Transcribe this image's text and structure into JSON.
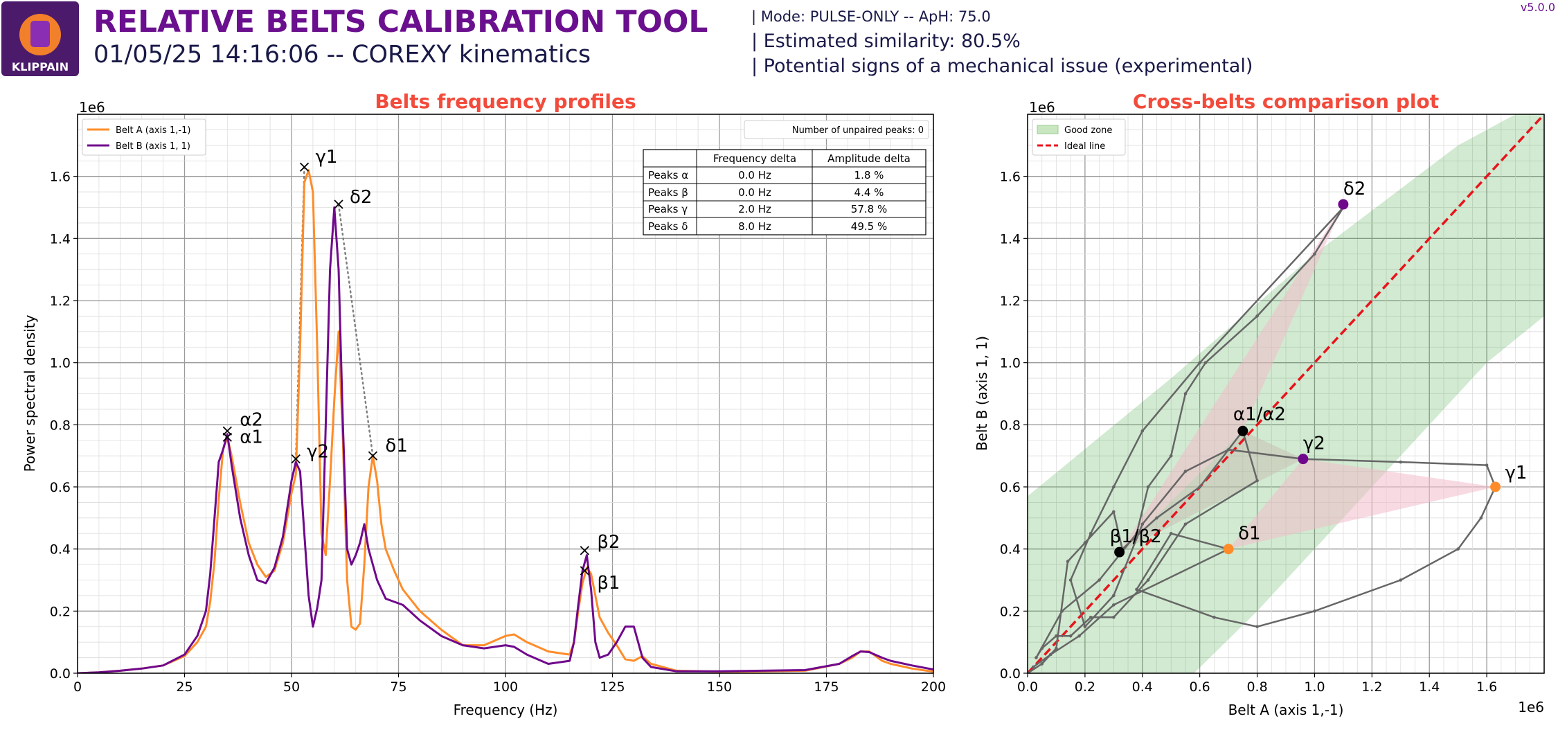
{
  "header": {
    "logo_text": "KLIPPAIN",
    "title": "RELATIVE BELTS CALIBRATION TOOL",
    "subtitle": "01/05/25 14:16:06 -- COREXY kinematics",
    "mode_line": "| Mode: PULSE-ONLY -- ApH: 75.0",
    "similarity_line": "| Estimated similarity: 80.5%",
    "issue_line": "| Potential signs of a mechanical issue (experimental)",
    "version": "v5.0.0",
    "colors": {
      "title": "#6a0f8e",
      "text": "#191948",
      "accent": "#f24b3c"
    }
  },
  "chart_data": [
    {
      "type": "line",
      "title": "Belts frequency profiles",
      "xlabel": "Frequency (Hz)",
      "ylabel": "Power spectral density",
      "y_scale_label": "1e6",
      "xlim": [
        0,
        200
      ],
      "ylim": [
        0,
        1.8
      ],
      "xticks": [
        "0",
        "25",
        "50",
        "75",
        "100",
        "125",
        "150",
        "175",
        "200"
      ],
      "yticks": [
        "0.0",
        "0.2",
        "0.4",
        "0.6",
        "0.8",
        "1.0",
        "1.2",
        "1.4",
        "1.6"
      ],
      "grid": true,
      "legend_position": "top-left",
      "series": [
        {
          "name": "Belt A (axis 1,-1)",
          "color": "#ff8c29",
          "x": [
            0,
            5,
            10,
            15,
            20,
            25,
            28,
            30,
            31,
            32,
            33,
            34,
            35,
            36,
            38,
            40,
            42,
            44,
            46,
            48,
            50,
            51,
            52,
            53,
            54,
            55,
            56,
            57,
            58,
            59,
            60,
            61,
            62,
            63,
            64,
            65,
            66,
            67,
            68,
            69,
            70,
            71,
            72,
            74,
            76,
            80,
            85,
            90,
            95,
            100,
            102,
            105,
            110,
            115,
            116,
            117,
            118,
            119,
            120,
            121,
            122,
            124,
            126,
            128,
            130,
            132,
            134,
            140,
            150,
            160,
            170,
            178,
            181,
            183,
            185,
            188,
            190,
            195,
            200
          ],
          "y": [
            0,
            0.003,
            0.008,
            0.015,
            0.025,
            0.055,
            0.1,
            0.15,
            0.23,
            0.36,
            0.56,
            0.72,
            0.76,
            0.7,
            0.55,
            0.42,
            0.35,
            0.31,
            0.33,
            0.42,
            0.58,
            0.64,
            1.05,
            1.58,
            1.62,
            1.55,
            1.05,
            0.45,
            0.38,
            0.62,
            0.88,
            1.1,
            0.75,
            0.3,
            0.15,
            0.14,
            0.16,
            0.35,
            0.6,
            0.7,
            0.62,
            0.48,
            0.4,
            0.33,
            0.27,
            0.2,
            0.14,
            0.09,
            0.09,
            0.12,
            0.125,
            0.1,
            0.07,
            0.06,
            0.1,
            0.2,
            0.29,
            0.34,
            0.32,
            0.25,
            0.18,
            0.13,
            0.09,
            0.045,
            0.04,
            0.055,
            0.03,
            0.008,
            0.005,
            0.006,
            0.008,
            0.03,
            0.05,
            0.07,
            0.07,
            0.04,
            0.03,
            0.015,
            0.005
          ]
        },
        {
          "name": "Belt B (axis 1, 1)",
          "color": "#70088c",
          "x": [
            0,
            5,
            10,
            15,
            20,
            25,
            28,
            30,
            31,
            32,
            33,
            34,
            35,
            36,
            38,
            40,
            42,
            44,
            46,
            48,
            50,
            51,
            52,
            53,
            54,
            55,
            56,
            57,
            58,
            59,
            60,
            61,
            62,
            63,
            64,
            65,
            66,
            67,
            68,
            69,
            70,
            71,
            72,
            74,
            76,
            80,
            85,
            90,
            95,
            100,
            102,
            105,
            110,
            115,
            116,
            117,
            118,
            119,
            120,
            121,
            122,
            124,
            126,
            128,
            130,
            132,
            134,
            140,
            150,
            160,
            170,
            178,
            181,
            183,
            185,
            188,
            190,
            195,
            200
          ],
          "y": [
            0,
            0.003,
            0.008,
            0.015,
            0.025,
            0.06,
            0.12,
            0.2,
            0.32,
            0.5,
            0.68,
            0.72,
            0.77,
            0.67,
            0.5,
            0.38,
            0.3,
            0.29,
            0.34,
            0.44,
            0.62,
            0.68,
            0.65,
            0.45,
            0.25,
            0.15,
            0.21,
            0.3,
            0.8,
            1.3,
            1.5,
            1.3,
            0.8,
            0.4,
            0.35,
            0.38,
            0.42,
            0.48,
            0.4,
            0.35,
            0.3,
            0.27,
            0.24,
            0.23,
            0.22,
            0.17,
            0.12,
            0.09,
            0.08,
            0.09,
            0.085,
            0.06,
            0.03,
            0.04,
            0.1,
            0.22,
            0.33,
            0.38,
            0.27,
            0.1,
            0.05,
            0.06,
            0.1,
            0.15,
            0.15,
            0.05,
            0.02,
            0.006,
            0.006,
            0.008,
            0.01,
            0.03,
            0.055,
            0.07,
            0.068,
            0.05,
            0.04,
            0.025,
            0.012
          ]
        }
      ],
      "peaks": [
        {
          "label": "α1",
          "belt": "A",
          "x": 35,
          "y": 0.76
        },
        {
          "label": "α2",
          "belt": "B",
          "x": 35,
          "y": 0.78
        },
        {
          "label": "β1",
          "belt": "A",
          "x": 118.5,
          "y": 0.33
        },
        {
          "label": "β2",
          "belt": "B",
          "x": 118.5,
          "y": 0.395
        },
        {
          "label": "γ1",
          "belt": "A",
          "x": 53,
          "y": 1.63
        },
        {
          "label": "γ2",
          "belt": "B",
          "x": 51,
          "y": 0.69
        },
        {
          "label": "δ1",
          "belt": "A",
          "x": 69,
          "y": 0.7
        },
        {
          "label": "δ2",
          "belt": "B",
          "x": 61,
          "y": 1.51
        }
      ],
      "unpaired_peaks_label": "Number of unpaired peaks: 0",
      "table": {
        "headers": [
          "",
          "Frequency delta",
          "Amplitude delta"
        ],
        "rows": [
          [
            "Peaks α",
            "0.0 Hz",
            "1.8 %"
          ],
          [
            "Peaks β",
            "0.0 Hz",
            "4.4 %"
          ],
          [
            "Peaks γ",
            "2.0 Hz",
            "57.8 %"
          ],
          [
            "Peaks δ",
            "8.0 Hz",
            "49.5 %"
          ]
        ]
      }
    },
    {
      "type": "scatter",
      "title": "Cross-belts comparison plot",
      "xlabel": "Belt A (axis 1,-1)",
      "ylabel": "Belt B (axis 1, 1)",
      "x_scale_label": "1e6",
      "y_scale_label": "1e6",
      "xlim": [
        0,
        1.8
      ],
      "ylim": [
        0,
        1.8
      ],
      "xticks": [
        "0.0",
        "0.2",
        "0.4",
        "0.6",
        "0.8",
        "1.0",
        "1.2",
        "1.4",
        "1.6"
      ],
      "yticks": [
        "0.0",
        "0.2",
        "0.4",
        "0.6",
        "0.8",
        "1.0",
        "1.2",
        "1.4",
        "1.6"
      ],
      "grid": true,
      "legend_position": "top-left",
      "legend": [
        {
          "name": "Good zone",
          "color": "#2ca02c"
        },
        {
          "name": "Ideal line",
          "color": "#e8141c"
        }
      ],
      "good_zone_upper": [
        [
          0,
          0.57
        ],
        [
          0.5,
          0.95
        ],
        [
          1.0,
          1.35
        ],
        [
          1.5,
          1.7
        ],
        [
          1.8,
          1.85
        ]
      ],
      "good_zone_lower": [
        [
          0,
          0
        ],
        [
          0.58,
          0
        ],
        [
          0.8,
          0.2
        ],
        [
          1.2,
          0.6
        ],
        [
          1.6,
          1.0
        ],
        [
          1.8,
          1.15
        ]
      ],
      "trace": [
        [
          0,
          0
        ],
        [
          0.05,
          0.03
        ],
        [
          0.1,
          0.08
        ],
        [
          0.14,
          0.36
        ],
        [
          0.2,
          0.42
        ],
        [
          0.3,
          0.52
        ],
        [
          0.33,
          0.4
        ],
        [
          0.45,
          0.5
        ],
        [
          0.6,
          0.6
        ],
        [
          0.75,
          0.78
        ],
        [
          0.8,
          0.62
        ],
        [
          0.55,
          0.48
        ],
        [
          0.42,
          0.3
        ],
        [
          0.3,
          0.18
        ],
        [
          0.22,
          0.18
        ],
        [
          0.15,
          0.12
        ],
        [
          0.1,
          0.12
        ],
        [
          0.05,
          0.08
        ],
        [
          0.03,
          0.05
        ],
        [
          0.12,
          0.2
        ],
        [
          0.25,
          0.3
        ],
        [
          0.38,
          0.45
        ],
        [
          0.42,
          0.6
        ],
        [
          0.5,
          0.7
        ],
        [
          0.55,
          0.9
        ],
        [
          0.62,
          1.0
        ],
        [
          0.8,
          1.15
        ],
        [
          1.0,
          1.35
        ],
        [
          1.1,
          1.5
        ],
        [
          0.6,
          1.0
        ],
        [
          0.4,
          0.78
        ],
        [
          0.3,
          0.6
        ],
        [
          0.22,
          0.45
        ],
        [
          0.15,
          0.3
        ],
        [
          0.2,
          0.15
        ],
        [
          0.3,
          0.25
        ],
        [
          0.4,
          0.48
        ],
        [
          0.55,
          0.65
        ],
        [
          0.7,
          0.72
        ],
        [
          0.96,
          0.69
        ],
        [
          1.3,
          0.68
        ],
        [
          1.6,
          0.67
        ],
        [
          1.63,
          0.6
        ],
        [
          1.58,
          0.5
        ],
        [
          1.5,
          0.4
        ],
        [
          1.3,
          0.3
        ],
        [
          1.0,
          0.2
        ],
        [
          0.8,
          0.15
        ],
        [
          0.65,
          0.18
        ],
        [
          0.38,
          0.27
        ],
        [
          0.5,
          0.45
        ],
        [
          0.7,
          0.4
        ],
        [
          0.3,
          0.22
        ],
        [
          0.18,
          0.12
        ],
        [
          0.08,
          0.06
        ],
        [
          0.02,
          0.02
        ]
      ],
      "shaded_triangles": [
        {
          "color": "#f2bccb",
          "points": [
            [
              0.32,
              0.39
            ],
            [
              1.1,
              1.51
            ],
            [
              0.75,
              0.78
            ]
          ]
        },
        {
          "color": "#f2bccb",
          "points": [
            [
              0.96,
              0.69
            ],
            [
              1.63,
              0.6
            ],
            [
              0.7,
              0.4
            ]
          ]
        },
        {
          "color": "#c8bfb4",
          "points": [
            [
              0.32,
              0.39
            ],
            [
              0.75,
              0.78
            ],
            [
              0.96,
              0.69
            ]
          ]
        }
      ],
      "points": [
        {
          "label": "α1/α2",
          "x": 0.75,
          "y": 0.78,
          "color": "#000000"
        },
        {
          "label": "β1/β2",
          "x": 0.32,
          "y": 0.39,
          "color": "#000000"
        },
        {
          "label": "γ1",
          "x": 1.63,
          "y": 0.6,
          "color": "#ff8c29"
        },
        {
          "label": "γ2",
          "x": 0.96,
          "y": 0.69,
          "color": "#70088c"
        },
        {
          "label": "δ1",
          "x": 0.7,
          "y": 0.4,
          "color": "#ff8c29"
        },
        {
          "label": "δ2",
          "x": 1.1,
          "y": 1.51,
          "color": "#70088c"
        }
      ]
    }
  ]
}
